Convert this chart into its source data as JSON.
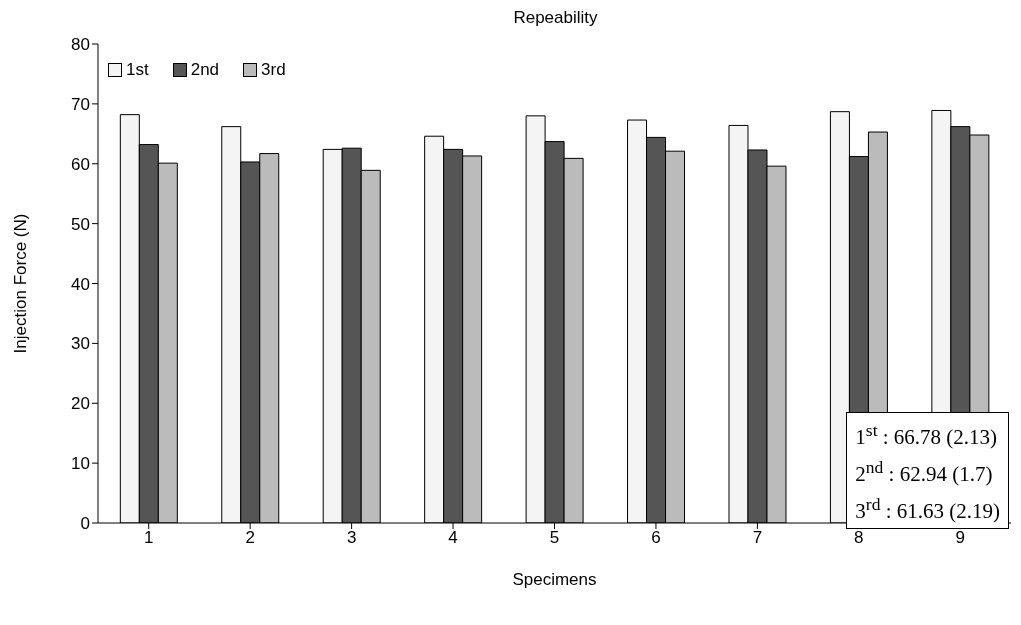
{
  "chart_data": {
    "type": "bar",
    "title": "Repeability",
    "xlabel": "Specimens",
    "ylabel": "Injection Force (N)",
    "categories": [
      "1",
      "2",
      "3",
      "4",
      "5",
      "6",
      "7",
      "8",
      "9"
    ],
    "series": [
      {
        "name": "1st",
        "color": "#f4f4f4",
        "values": [
          68.2,
          66.2,
          62.4,
          64.6,
          68.0,
          67.3,
          66.4,
          68.7,
          68.9
        ]
      },
      {
        "name": "2nd",
        "color": "#555555",
        "values": [
          63.2,
          60.3,
          62.6,
          62.4,
          63.7,
          64.4,
          62.3,
          61.2,
          66.2
        ]
      },
      {
        "name": "3rd",
        "color": "#bbbbbb",
        "values": [
          60.1,
          61.7,
          58.9,
          61.3,
          60.9,
          62.1,
          59.6,
          65.3,
          64.8
        ]
      }
    ],
    "ylim": [
      0,
      80
    ],
    "yticks": [
      0,
      10,
      20,
      30,
      40,
      50,
      60,
      70,
      80
    ],
    "grid": false,
    "legend": "top left",
    "annotations": [
      "1$^{st}$ : 66.78 (2.13)",
      "2$^{nd}$ : 62.94 (1.7)",
      "3$^{rd}$ : 61.63 (2.19)"
    ]
  }
}
